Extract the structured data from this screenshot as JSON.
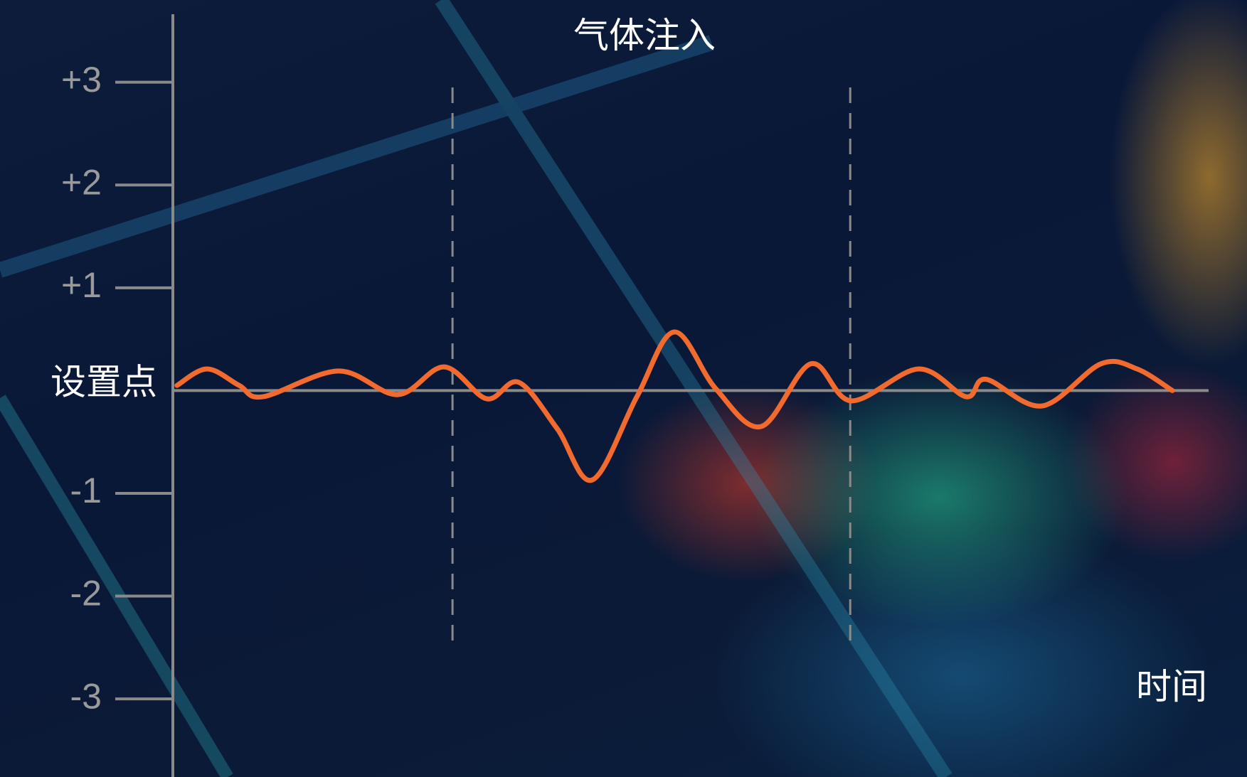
{
  "chart_data": {
    "type": "line",
    "title": "气体注入",
    "x_label": "时间",
    "x": [
      0.4,
      3.3,
      6.4,
      8.7,
      16,
      21.7,
      26.2,
      30.3,
      33.4,
      37.1,
      40.5,
      44.8,
      48.4,
      52.4,
      56.8,
      61.6,
      65.5,
      72,
      76.6,
      78.5,
      83.9,
      89.6,
      93.1,
      96.5
    ],
    "series": [
      {
        "color": "#f26a2e",
        "values": [
          0.05,
          0.21,
          0.05,
          -0.06,
          0.19,
          -0.04,
          0.23,
          -0.08,
          0.08,
          -0.37,
          -0.87,
          -0.06,
          0.57,
          0.02,
          -0.35,
          0.26,
          -0.1,
          0.21,
          -0.06,
          0.11,
          -0.15,
          0.26,
          0.21,
          0
        ]
      }
    ],
    "xlim": [
      0,
      100
    ],
    "ylim": [
      -3.76,
      3.8
    ],
    "yticks": [
      {
        "value": 3,
        "label": "+3"
      },
      {
        "value": 2,
        "label": "+2"
      },
      {
        "value": 1,
        "label": "+1"
      },
      {
        "value": 0,
        "label": "设置点"
      },
      -1,
      -2,
      -3
    ],
    "vlines": [
      27,
      65.4
    ]
  }
}
